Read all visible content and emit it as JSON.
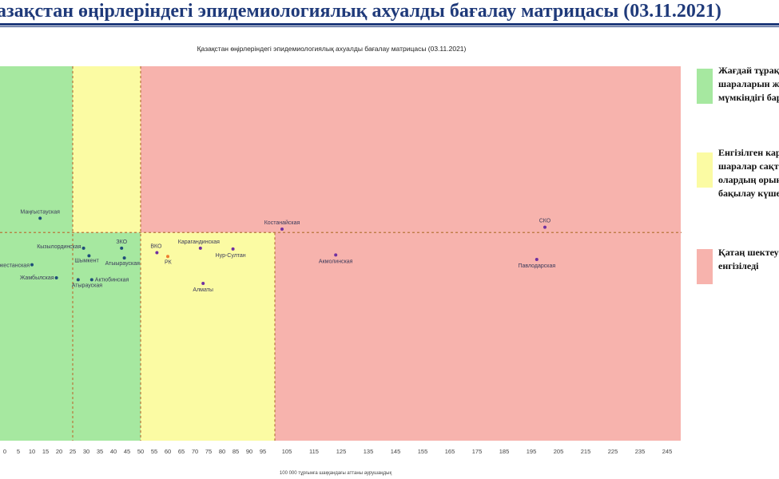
{
  "page_title": "азақстан өңірлеріндегі эпидемиологиялық ахуалды бағалау матрицасы  (03.11.2021)",
  "legend": [
    {
      "label": "Жағдай тұрақталса шектеу шараларын жеңілдету мүмкіндігі бар",
      "color": "#a6e8a0"
    },
    {
      "label": "Енгізілген карантиндік шаралар сақталады және олардың орындалуын бақылау күшейтіледі",
      "color": "#fbfba3"
    },
    {
      "label": "Қатаң шектеу шаралары енгізіледі",
      "color": "#f7b3ad"
    }
  ],
  "chart_data": {
    "type": "scatter",
    "title": "Қазақстан өңірлеріндегі эпидемиологиялық ахуалды бағалау матрицасы  (03.11.2021)",
    "xlabel": "100 000 тұрғынға шаққандағы аттаны аурушаңдық",
    "ylabel": "",
    "xlim": [
      -2,
      250
    ],
    "ylim": [
      0,
      1
    ],
    "x_ticks": [
      0,
      5,
      10,
      15,
      20,
      25,
      30,
      35,
      40,
      45,
      50,
      55,
      60,
      65,
      70,
      75,
      80,
      85,
      90,
      95,
      105,
      115,
      125,
      135,
      145,
      155,
      165,
      175,
      185,
      195,
      205,
      215,
      225,
      235,
      245
    ],
    "zones": [
      {
        "from": -2,
        "to": 25,
        "y_from": 0,
        "y_to": 1,
        "color": "#a6e8a0"
      },
      {
        "from": 25,
        "to": 50,
        "y_from": 0.556,
        "y_to": 1,
        "color": "#fbfba3"
      },
      {
        "from": 25,
        "to": 50,
        "y_from": 0,
        "y_to": 0.556,
        "color": "#a6e8a0"
      },
      {
        "from": 50,
        "to": 100,
        "y_from": 0,
        "y_to": 0.556,
        "color": "#fbfba3"
      },
      {
        "from": 50,
        "to": 100,
        "y_from": 0.556,
        "y_to": 1,
        "color": "#f7b3ad"
      },
      {
        "from": 100,
        "to": 250,
        "y_from": 0,
        "y_to": 1,
        "color": "#f7b3ad"
      }
    ],
    "threshold_lines": {
      "x": [
        25,
        50,
        100
      ],
      "y": 0.556
    },
    "points": [
      {
        "name": "Маңғыстауская",
        "x": 13,
        "y": 0.594,
        "color": "#1f4e79"
      },
      {
        "name": "Костанайская",
        "x": 103,
        "y": 0.565,
        "color": "#7030a0"
      },
      {
        "name": "СКО",
        "x": 200,
        "y": 0.57,
        "color": "#7030a0"
      },
      {
        "name": "Кызылординская",
        "x": 29,
        "y": 0.514,
        "color": "#1f4e79"
      },
      {
        "name": "ЗКО",
        "x": 43,
        "y": 0.514,
        "color": "#1f4e79"
      },
      {
        "name": "Шымкент",
        "x": 31,
        "y": 0.494,
        "color": "#1f4e79"
      },
      {
        "name": "Атыырауская",
        "x": 44,
        "y": 0.488,
        "color": "#1f4e79"
      },
      {
        "name": "Туркестанская",
        "x": 10,
        "y": 0.47,
        "color": "#1f4e79"
      },
      {
        "name": "Жамбылская",
        "x": 19,
        "y": 0.435,
        "color": "#1f4e79"
      },
      {
        "name": "Атырауская",
        "x": 27,
        "y": 0.43,
        "color": "#1f4e79"
      },
      {
        "name": "Актюбинская",
        "x": 32,
        "y": 0.43,
        "color": "#1f4e79"
      },
      {
        "name": "ВКО",
        "x": 56,
        "y": 0.502,
        "color": "#7030a0"
      },
      {
        "name": "РК",
        "x": 60,
        "y": 0.492,
        "color": "#ed7d31"
      },
      {
        "name": "Карагандинская",
        "x": 72,
        "y": 0.514,
        "color": "#7030a0"
      },
      {
        "name": "Нур-Султан",
        "x": 84,
        "y": 0.512,
        "color": "#7030a0"
      },
      {
        "name": "Алматы",
        "x": 73,
        "y": 0.42,
        "color": "#7030a0"
      },
      {
        "name": "Акмолинская",
        "x": 123,
        "y": 0.496,
        "color": "#7030a0"
      },
      {
        "name": "Павлодарская",
        "x": 197,
        "y": 0.484,
        "color": "#7030a0"
      }
    ]
  }
}
